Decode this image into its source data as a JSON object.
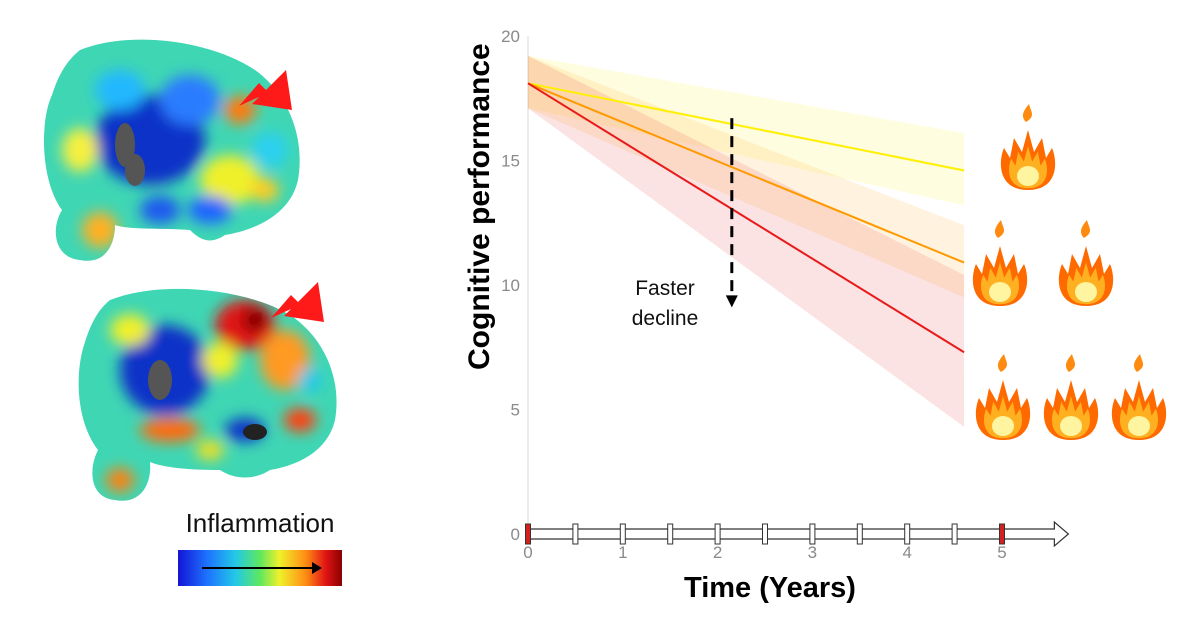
{
  "chart_data": {
    "type": "line",
    "xlabel": "Time (Years)",
    "ylabel": "Cognitive performance",
    "xlim": [
      0,
      5
    ],
    "ylim": [
      0,
      20
    ],
    "x_ticks": [
      "0",
      "1",
      "2",
      "3",
      "4",
      "5"
    ],
    "y_ticks": [
      "0",
      "5",
      "10",
      "15",
      "20"
    ],
    "series": [
      {
        "x": [
          0,
          4.6
        ],
        "y": [
          18.1,
          14.6
        ],
        "band_end": [
          13.2,
          16.1
        ],
        "color": "#ffef00"
      },
      {
        "x": [
          0,
          4.6
        ],
        "y": [
          18.1,
          10.9
        ],
        "band_end": [
          9.5,
          12.4
        ],
        "color": "#ff9900"
      },
      {
        "x": [
          0,
          4.6
        ],
        "y": [
          18.1,
          7.3
        ],
        "band_end": [
          4.3,
          10.4
        ],
        "color": "#e81a1a"
      }
    ],
    "band_start": [
      17.1,
      19.2
    ],
    "annotation": {
      "line1": "Faster",
      "line2": "decline",
      "x": 2.15,
      "y_from": 16.7,
      "y_to": 9.1
    },
    "timeline": {
      "y": 0,
      "x_end": 5.7,
      "ticks": [
        0,
        0.5,
        1,
        1.5,
        2,
        2.5,
        3,
        3.5,
        4,
        4.5,
        5
      ],
      "highlight": [
        0,
        5
      ],
      "highlight_color": "#d42020"
    },
    "flame_groups": [
      1,
      2,
      3
    ]
  },
  "legend_panel": {
    "label": "Inflammation",
    "colorbar_colors": [
      "#1414d6",
      "#1e73ff",
      "#22c8e8",
      "#5ee85e",
      "#f0f02a",
      "#ff8c14",
      "#e01414",
      "#8a0000"
    ],
    "marker_color": "#ff1a1a"
  },
  "icons": [
    "brain-scan-icon",
    "arrow-icon",
    "flame-icon"
  ]
}
